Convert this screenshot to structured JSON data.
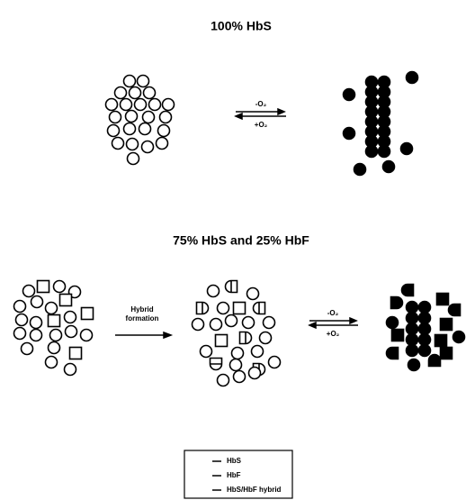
{
  "panels": [
    {
      "title": "100% HbS",
      "arrow_labels": [
        "-O₂",
        "+O₂"
      ]
    },
    {
      "title": "75% HbS and 25% HbF",
      "step_label": [
        "Hybrid",
        "formation"
      ],
      "arrow_labels": [
        "-O₂",
        "+O₂"
      ]
    }
  ],
  "legend": [
    "HbS",
    "HbF",
    "HbS/HbF hybrid"
  ]
}
